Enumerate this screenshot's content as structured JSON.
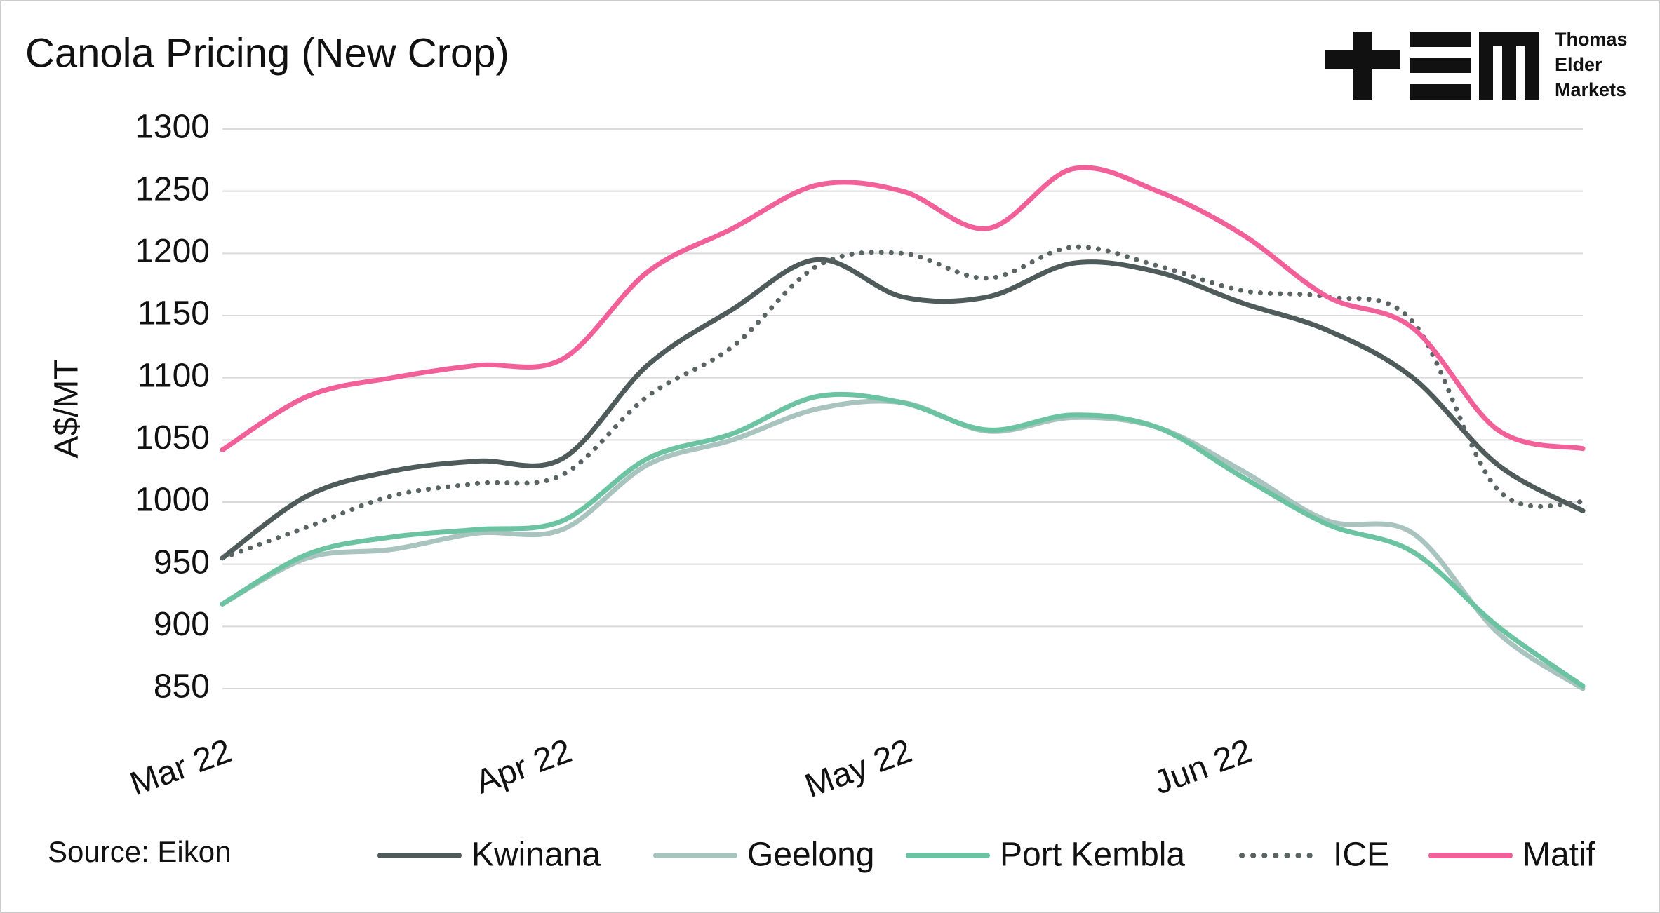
{
  "chart_data": {
    "type": "line",
    "title": "Canola Pricing (New Crop)",
    "y_label": "A$/MT",
    "source": "Source: Eikon",
    "logo_text": [
      "Thomas",
      "Elder",
      "Markets"
    ],
    "categories": [
      "Mar 22",
      null,
      null,
      null,
      "Apr 22",
      null,
      null,
      null,
      "May 22",
      null,
      null,
      null,
      "Jun 22",
      null,
      null,
      null,
      null
    ],
    "ylim": [
      850,
      1300
    ],
    "yticks": [
      850,
      900,
      950,
      1000,
      1050,
      1100,
      1150,
      1200,
      1250,
      1300
    ],
    "grid": true,
    "series": [
      {
        "name": "Kwinana",
        "color": "#4f5b5b",
        "dash": "solid",
        "values": [
          955,
          1005,
          1025,
          1033,
          1035,
          1110,
          1155,
          1195,
          1165,
          1165,
          1192,
          1185,
          1160,
          1138,
          1100,
          1030,
          993
        ]
      },
      {
        "name": "Geelong",
        "color": "#a9c3bf",
        "dash": "solid",
        "values": [
          918,
          955,
          962,
          975,
          978,
          1030,
          1050,
          1075,
          1080,
          1057,
          1068,
          1060,
          1025,
          985,
          975,
          895,
          850
        ]
      },
      {
        "name": "Port Kembla",
        "color": "#6cc3a2",
        "dash": "solid",
        "values": [
          918,
          958,
          972,
          978,
          985,
          1035,
          1055,
          1085,
          1080,
          1058,
          1070,
          1060,
          1020,
          982,
          960,
          900,
          852
        ]
      },
      {
        "name": "ICE",
        "color": "#5a6464",
        "dash": "dotted",
        "values": [
          955,
          980,
          1005,
          1015,
          1022,
          1085,
          1125,
          1190,
          1200,
          1180,
          1205,
          1190,
          1170,
          1165,
          1145,
          1010,
          1000
        ]
      },
      {
        "name": "Matif",
        "color": "#f2609a",
        "dash": "solid",
        "values": [
          1042,
          1085,
          1100,
          1110,
          1115,
          1185,
          1220,
          1255,
          1250,
          1220,
          1268,
          1250,
          1215,
          1165,
          1140,
          1058,
          1043
        ]
      }
    ]
  }
}
